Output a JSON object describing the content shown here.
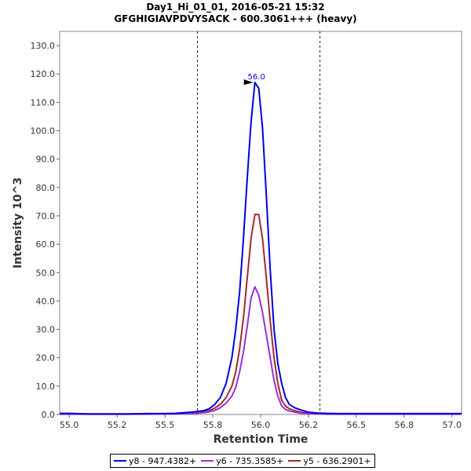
{
  "chart_data": {
    "type": "line",
    "title": "Day1_Hi_01_01, 2016-05-21 15:32",
    "subtitle": "GFGHIGIAVPDVYSACK - 600.3061+++ (heavy)",
    "xlabel": "Retention Time",
    "ylabel": "Intensity 10^3",
    "xlim": [
      54.95,
      57.05
    ],
    "ylim": [
      0,
      135
    ],
    "x_ticks": [
      "55.0",
      "55.2",
      "55.5",
      "55.8",
      "56.0",
      "56.2",
      "56.5",
      "56.8",
      "57.0"
    ],
    "x_tick_values": [
      55.0,
      55.25,
      55.5,
      55.75,
      56.0,
      56.25,
      56.5,
      56.75,
      57.0
    ],
    "y_ticks": [
      "0.0",
      "10.0",
      "20.0",
      "30.0",
      "40.0",
      "50.0",
      "60.0",
      "70.0",
      "80.0",
      "90.0",
      "100.0",
      "110.0",
      "120.0",
      "130.0"
    ],
    "y_tick_values": [
      0,
      10,
      20,
      30,
      40,
      50,
      60,
      70,
      80,
      90,
      100,
      110,
      120,
      130
    ],
    "boundaries": [
      55.67,
      56.31
    ],
    "annotation": {
      "label": "56.0",
      "x": 55.97,
      "y": 117,
      "color": "#0000dd"
    },
    "grid": false,
    "legend_position": "bottom",
    "series": [
      {
        "name": "y8 - 947.4382+",
        "color": "#0000e0",
        "x": [
          54.95,
          55.0,
          55.1,
          55.2,
          55.3,
          55.4,
          55.5,
          55.55,
          55.6,
          55.65,
          55.7,
          55.73,
          55.76,
          55.79,
          55.82,
          55.85,
          55.87,
          55.89,
          55.91,
          55.93,
          55.95,
          55.97,
          55.99,
          56.01,
          56.03,
          56.05,
          56.07,
          56.09,
          56.11,
          56.13,
          56.15,
          56.18,
          56.21,
          56.25,
          56.3,
          56.35,
          56.4,
          56.5,
          56.6,
          56.7,
          56.8,
          56.9,
          57.0,
          57.05
        ],
        "y": [
          0.4,
          0.4,
          0.2,
          0.2,
          0.2,
          0.3,
          0.3,
          0.4,
          0.6,
          0.9,
          1.3,
          2.0,
          3.5,
          6.0,
          11.0,
          20.0,
          30.0,
          43.0,
          62.0,
          83.0,
          103.0,
          117.0,
          115.0,
          101.0,
          77.0,
          51.0,
          30.0,
          18.0,
          11.0,
          6.0,
          3.5,
          2.3,
          1.6,
          0.8,
          0.5,
          0.4,
          0.3,
          0.3,
          0.3,
          0.3,
          0.3,
          0.3,
          0.3,
          0.3
        ]
      },
      {
        "name": "y6 - 735.3585+",
        "color": "#9a2de2",
        "x": [
          54.95,
          55.0,
          55.1,
          55.2,
          55.3,
          55.4,
          55.5,
          55.55,
          55.6,
          55.65,
          55.7,
          55.73,
          55.76,
          55.79,
          55.82,
          55.85,
          55.87,
          55.89,
          55.91,
          55.93,
          55.95,
          55.97,
          55.99,
          56.01,
          56.03,
          56.05,
          56.07,
          56.09,
          56.11,
          56.13,
          56.15,
          56.18,
          56.21,
          56.25,
          56.3,
          56.35,
          56.4,
          56.5,
          56.6,
          56.7,
          56.8,
          56.9,
          57.0,
          57.05
        ],
        "y": [
          0.1,
          0.1,
          0.1,
          0.1,
          0.1,
          0.1,
          0.2,
          0.2,
          0.3,
          0.4,
          0.6,
          0.9,
          1.4,
          2.4,
          4.0,
          6.5,
          9.5,
          15.0,
          22.0,
          31.0,
          41.0,
          45.0,
          42.0,
          36.0,
          28.0,
          20.0,
          12.0,
          6.5,
          3.0,
          1.8,
          1.2,
          0.8,
          0.5,
          0.3,
          0.2,
          0.1,
          0.1,
          0.1,
          0.1,
          0.1,
          0.1,
          0.1,
          0.1,
          0.1
        ]
      },
      {
        "name": "y5 - 636.2901+",
        "color": "#a52a2a",
        "x": [
          54.95,
          55.0,
          55.1,
          55.2,
          55.3,
          55.4,
          55.5,
          55.55,
          55.6,
          55.65,
          55.7,
          55.73,
          55.76,
          55.79,
          55.82,
          55.85,
          55.87,
          55.89,
          55.91,
          55.93,
          55.95,
          55.97,
          55.99,
          56.01,
          56.03,
          56.05,
          56.07,
          56.09,
          56.11,
          56.13,
          56.15,
          56.18,
          56.21,
          56.25,
          56.3,
          56.35,
          56.4,
          56.5,
          56.6,
          56.7,
          56.8,
          56.9,
          57.0,
          57.05
        ],
        "y": [
          0.2,
          0.2,
          0.1,
          0.1,
          0.1,
          0.2,
          0.3,
          0.3,
          0.4,
          0.6,
          0.9,
          1.3,
          2.2,
          3.6,
          6.0,
          10.0,
          15.0,
          23.0,
          34.0,
          48.0,
          62.0,
          70.5,
          70.5,
          62.0,
          48.0,
          33.0,
          20.0,
          11.0,
          5.0,
          3.0,
          2.0,
          1.3,
          0.8,
          0.5,
          0.3,
          0.2,
          0.2,
          0.2,
          0.2,
          0.2,
          0.2,
          0.2,
          0.2,
          0.2
        ]
      }
    ]
  }
}
